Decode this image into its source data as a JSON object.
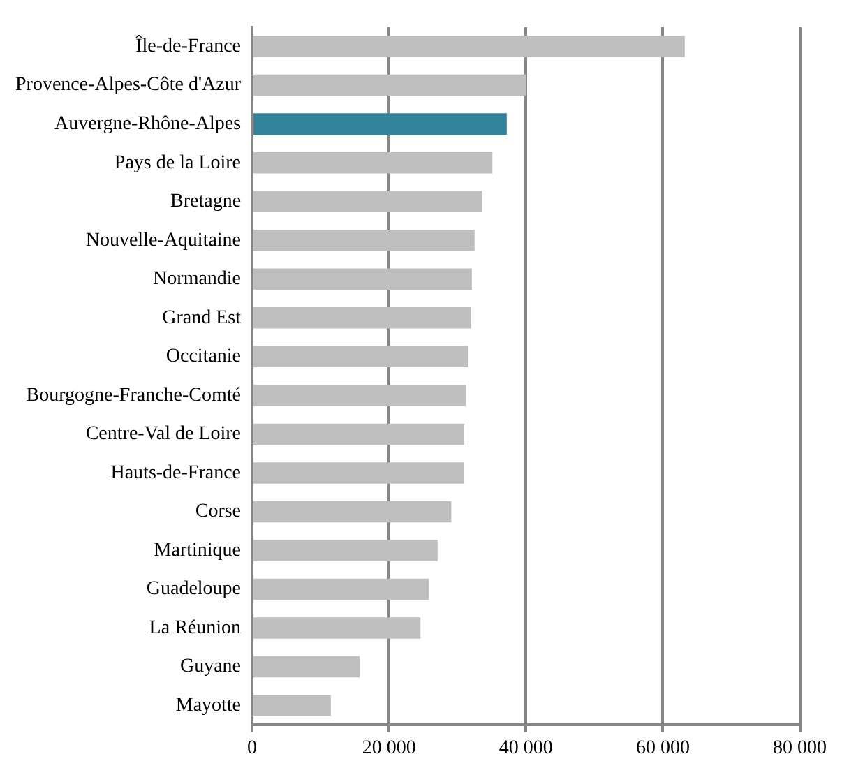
{
  "chart_data": {
    "type": "bar",
    "orientation": "horizontal",
    "categories": [
      "Île-de-France",
      "Provence-Alpes-Côte d'Azur",
      "Auvergne-Rhône-Alpes",
      "Pays de la Loire",
      "Bretagne",
      "Nouvelle-Aquitaine",
      "Normandie",
      "Grand Est",
      "Occitanie",
      "Bourgogne-Franche-Comté",
      "Centre-Val de Loire",
      "Hauts-de-France",
      "Corse",
      "Martinique",
      "Guadeloupe",
      "La Réunion",
      "Guyane",
      "Mayotte"
    ],
    "values": [
      63200,
      40000,
      37200,
      35100,
      33600,
      32500,
      32100,
      32000,
      31600,
      31200,
      31000,
      30900,
      29100,
      27100,
      25800,
      24600,
      15700,
      11500
    ],
    "colors": [
      "#bfbfbf",
      "#bfbfbf",
      "#31849b",
      "#bfbfbf",
      "#bfbfbf",
      "#bfbfbf",
      "#bfbfbf",
      "#bfbfbf",
      "#bfbfbf",
      "#bfbfbf",
      "#bfbfbf",
      "#bfbfbf",
      "#bfbfbf",
      "#bfbfbf",
      "#bfbfbf",
      "#bfbfbf",
      "#bfbfbf",
      "#bfbfbf"
    ],
    "xlim": [
      0,
      80000
    ],
    "xticks": [
      {
        "value": 0,
        "label": "0"
      },
      {
        "value": 20000,
        "label": "20 000"
      },
      {
        "value": 40000,
        "label": "40 000"
      },
      {
        "value": 60000,
        "label": "60 000"
      },
      {
        "value": 80000,
        "label": "80 000"
      }
    ],
    "grid": "x",
    "legend": false
  }
}
